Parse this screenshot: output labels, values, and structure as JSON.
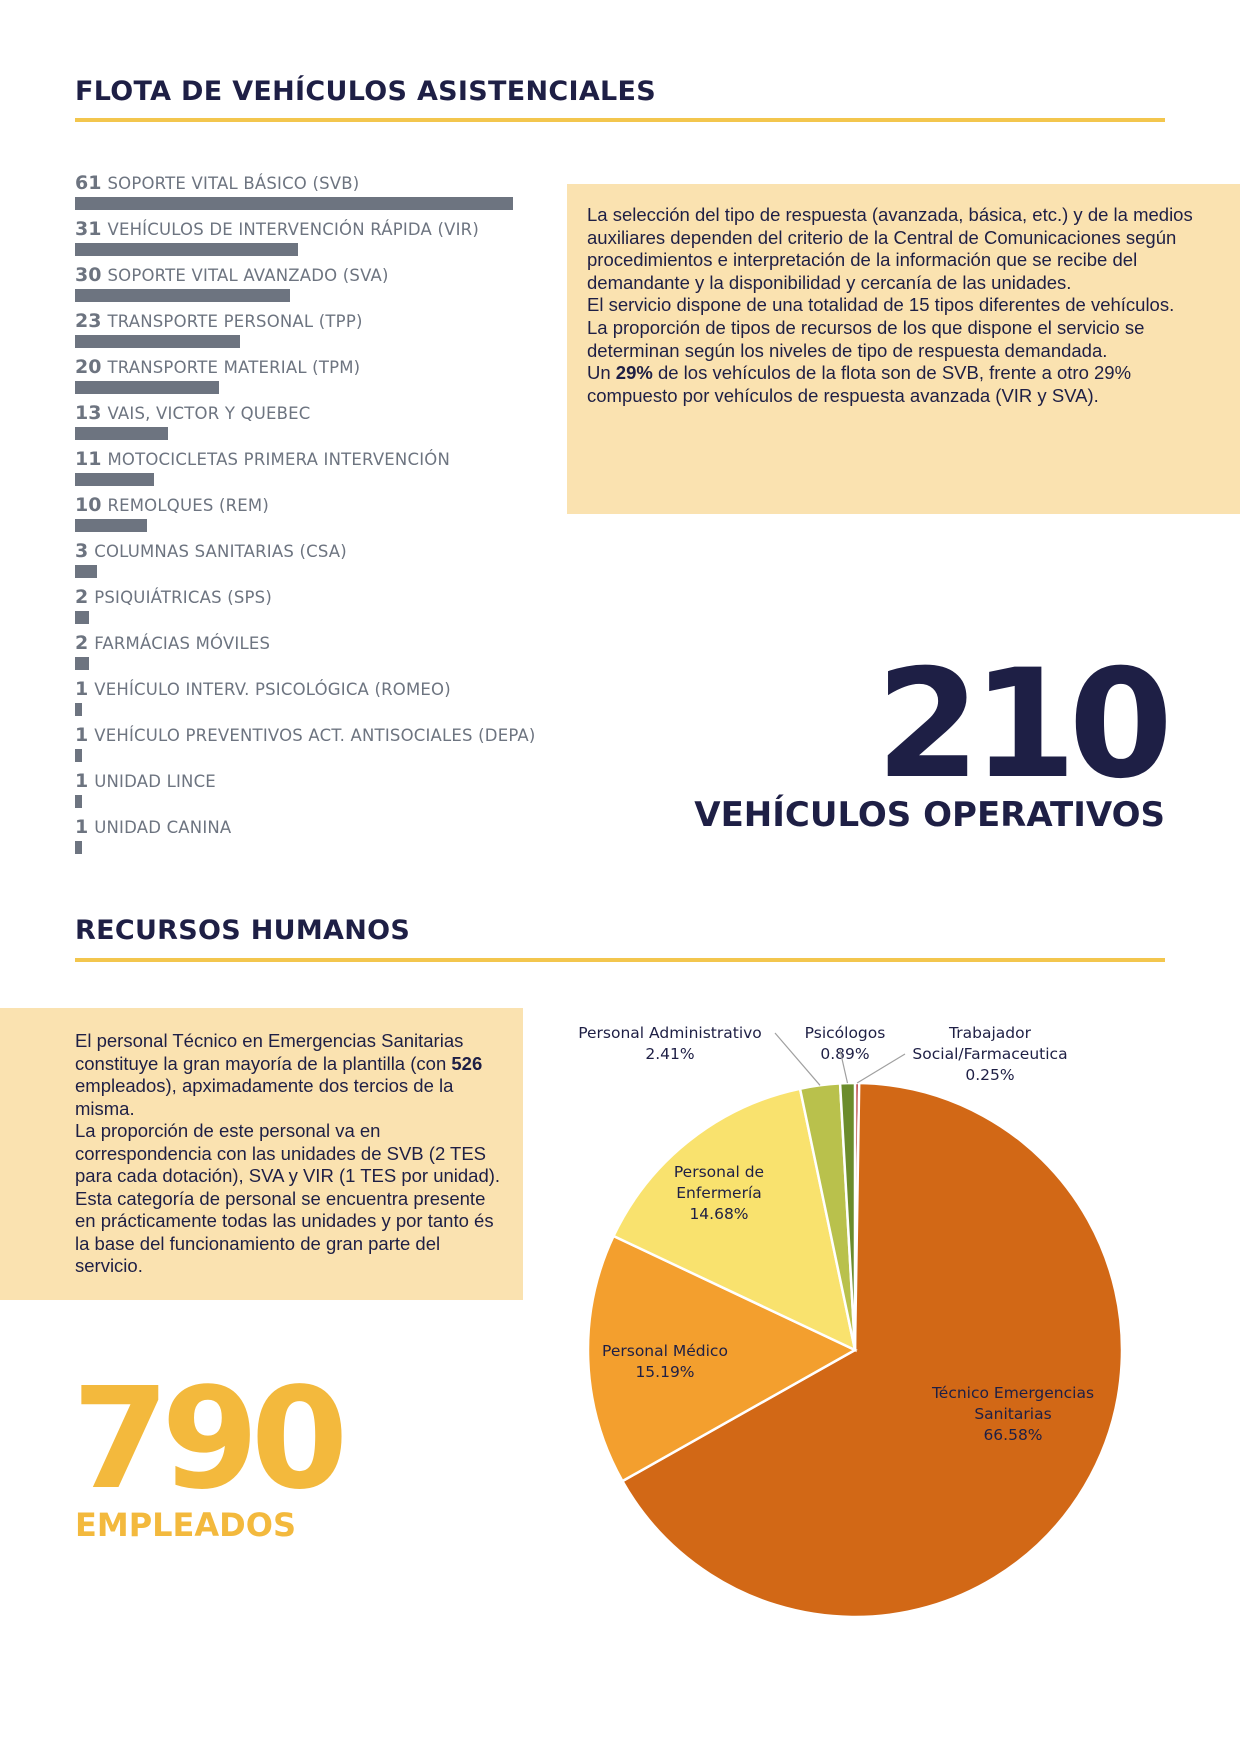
{
  "fleet": {
    "title": "FLOTA DE VEHÍCULOS ASISTENCIALES",
    "items": [
      {
        "value": "61",
        "label": "SOPORTE VITAL BÁSICO (SVB)"
      },
      {
        "value": "31",
        "label": "VEHÍCULOS DE INTERVENCIÓN RÁPIDA (VIR)"
      },
      {
        "value": "30",
        "label": "SOPORTE VITAL AVANZADO (SVA)"
      },
      {
        "value": "23",
        "label": "TRANSPORTE PERSONAL (TPP)"
      },
      {
        "value": "20",
        "label": "TRANSPORTE MATERIAL (TPM)"
      },
      {
        "value": "13",
        "label": "VAIS, VICTOR Y QUEBEC"
      },
      {
        "value": "11",
        "label": "MOTOCICLETAS PRIMERA INTERVENCIÓN"
      },
      {
        "value": "10",
        "label": "REMOLQUES (REM)"
      },
      {
        "value": "3",
        "label": "COLUMNAS SANITARIAS (CSA)"
      },
      {
        "value": "2",
        "label": "PSIQUIÁTRICAS (SPS)"
      },
      {
        "value": "2",
        "label": "FARMÁCIAS MÓVILES"
      },
      {
        "value": "1",
        "label": "VEHÍCULO INTERV. PSICOLÓGICA (ROMEO)"
      },
      {
        "value": "1",
        "label": "VEHÍCULO PREVENTIVOS ACT. ANTISOCIALES (DEPA)"
      },
      {
        "value": "1",
        "label": "UNIDAD LINCE"
      },
      {
        "value": "1",
        "label": "UNIDAD CANINA"
      }
    ],
    "bar_color": "#6d7480",
    "info": {
      "p1": "La selección del tipo de respuesta (avanzada, básica, etc.) y de la medios auxiliares dependen del criterio de la Central de Comunicaciones según procedimientos e interpretación de la información que se recibe del demandante y la disponibilidad y cercanía de las unidades.",
      "p2": "El servicio dispone de una totalidad de 15 tipos diferentes de vehículos.",
      "p3": "La proporción de tipos de recursos de los que dispone el servicio se determinan según los niveles de tipo de respuesta demandada.",
      "p4_pre": "Un ",
      "p4_bold": "29%",
      "p4_post": " de los vehículos de la flota son de SVB, frente a otro 29% compuesto por vehículos de respuesta avanzada (VIR y SVA)."
    },
    "total": "210",
    "total_caption": "VEHÍCULOS OPERATIVOS"
  },
  "hr": {
    "title": "RECURSOS HUMANOS",
    "info": {
      "p1_pre": "El personal  Técnico en  Emergencias Sanitarias constituye la gran mayoría de la plantilla (con ",
      "p1_bold": "526",
      "p1_post": " empleados), apximadamente dos tercios de la misma.",
      "p2": "La proporción de este personal va en correspondencia con las unidades de SVB (2 TES para cada dotación), SVA y VIR (1 TES por unidad). Esta categoría de personal se encuentra presente en prácticamente todas las unidades y por tanto és la base del funcionamiento de gran parte del servicio."
    },
    "total": "790",
    "total_caption": "EMPLEADOS"
  },
  "chart_data": {
    "type": "pie",
    "unit": "%",
    "slices": [
      {
        "label": "Técnico Emergencias Sanitarias",
        "value": 66.58,
        "display": "66.58%",
        "color": "#d26816"
      },
      {
        "label": "Personal Médico",
        "value": 15.19,
        "display": "15.19%",
        "color": "#f39f2e"
      },
      {
        "label": "Personal de Enfermería",
        "value": 14.68,
        "display": "14.68%",
        "color": "#f9e26e"
      },
      {
        "label": "Personal Administrativo",
        "value": 2.41,
        "display": "2.41%",
        "color": "#b9c14c"
      },
      {
        "label": "Psicólogos",
        "value": 0.89,
        "display": "0.89%",
        "color": "#6c8c2c"
      },
      {
        "label": "Trabajador Social/Farmaceutica",
        "value": 0.25,
        "display": "0.25%",
        "color": "#b3302e"
      }
    ]
  }
}
